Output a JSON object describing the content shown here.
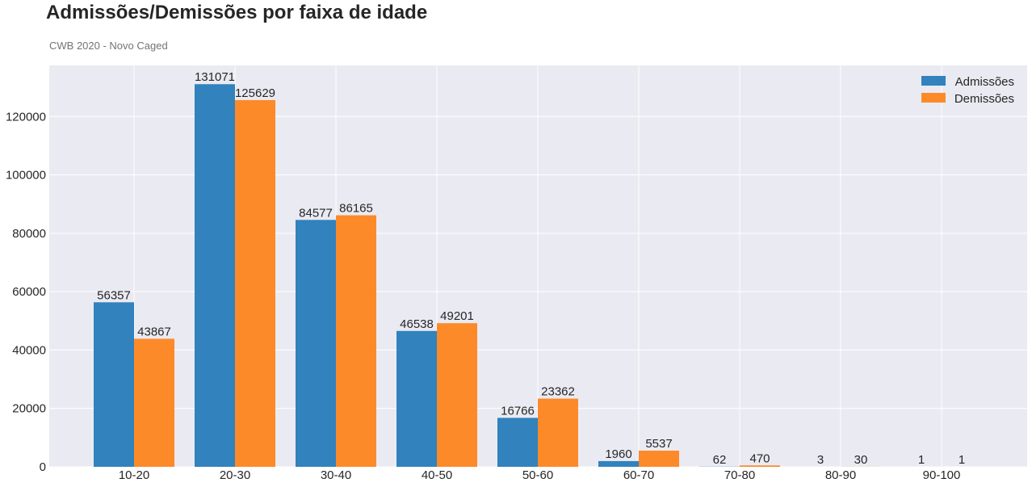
{
  "header": {
    "title": "Admissões/Demissões por faixa de idade",
    "subtitle": "CWB 2020 - Novo Caged"
  },
  "colors": {
    "plot_background": "#EAEAF2",
    "grid": "#FFFFFF",
    "admissoes": "#3182BD",
    "demissoes": "#FD8A29"
  },
  "chart_data": {
    "type": "bar",
    "title": "Admissões/Demissões por faixa de idade",
    "subtitle": "CWB 2020 - Novo Caged",
    "xlabel": "",
    "ylabel": "",
    "categories": [
      "10-20",
      "20-30",
      "30-40",
      "40-50",
      "50-60",
      "60-70",
      "70-80",
      "80-90",
      "90-100"
    ],
    "series": [
      {
        "name": "Admissões",
        "values": [
          56357,
          131071,
          84577,
          46538,
          16766,
          1960,
          62,
          3,
          1
        ]
      },
      {
        "name": "Demissões",
        "values": [
          43867,
          125629,
          86165,
          49201,
          23362,
          5537,
          470,
          30,
          1
        ]
      }
    ],
    "ylim": [
      0,
      137500
    ],
    "yticks": [
      0,
      20000,
      40000,
      60000,
      80000,
      100000,
      120000
    ],
    "grid": true,
    "legend_position": "top-right",
    "data_labels": true
  }
}
